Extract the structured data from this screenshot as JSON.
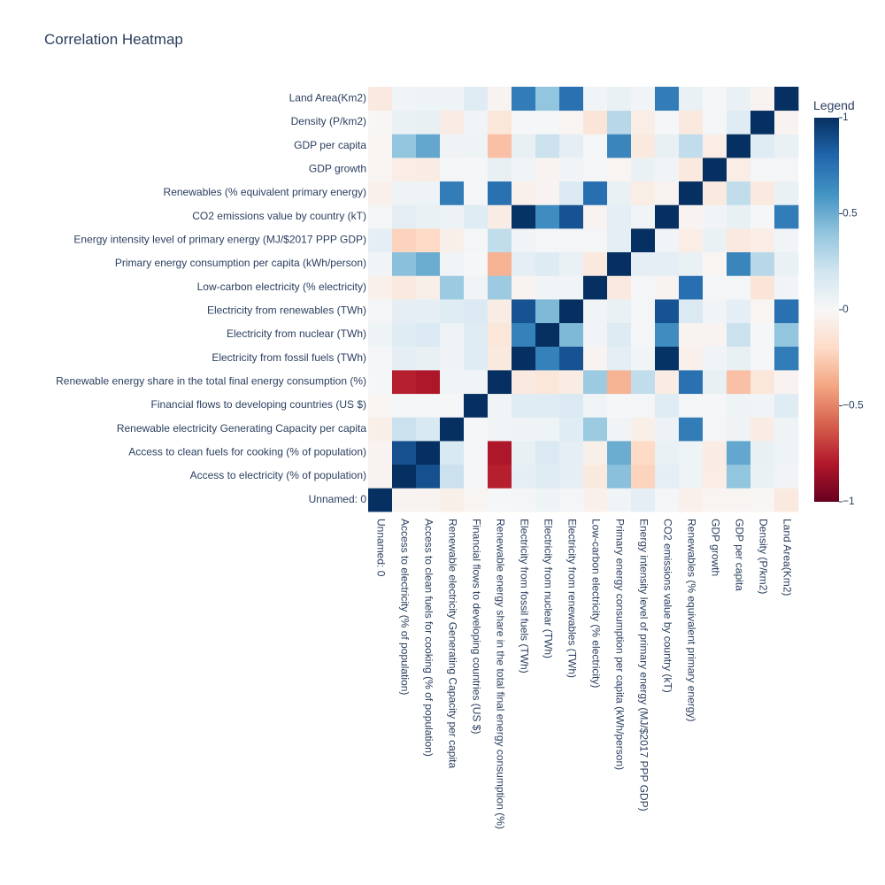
{
  "chart_data": {
    "type": "heatmap",
    "title": "Correlation Heatmap",
    "legend": {
      "title": "Legend",
      "range": [
        -1,
        1
      ],
      "ticks": [
        1,
        0.5,
        0,
        -0.5,
        -1
      ],
      "tick_labels": [
        "1",
        "0.5",
        "0",
        "−0.5",
        "−1"
      ],
      "colorscale": [
        "#67001f",
        "#b2182b",
        "#d6604d",
        "#f4a582",
        "#fddbc7",
        "#f7f7f7",
        "#d1e5f0",
        "#92c5de",
        "#4393c3",
        "#2166ac",
        "#053061"
      ]
    },
    "x_labels": [
      "Unnamed: 0",
      "Access to electricity (% of population)",
      "Access to clean fuels for cooking (% of population)",
      "Renewable electricity Generating Capacity per capita",
      "Financial flows to developing countries (US $)",
      "Renewable energy share in the total final energy consumption (%)",
      "Electricity from fossil fuels (TWh)",
      "Electricity from nuclear (TWh)",
      "Electricity from renewables (TWh)",
      "Low-carbon electricity (% electricity)",
      "Primary energy consumption per capita (kWh/person)",
      "Energy intensity level of primary energy (MJ/$2017 PPP GDP)",
      "CO2 emissions value by country (kT)",
      "Renewables (% equivalent primary energy)",
      "GDP growth",
      "GDP per capita",
      "Density (P/km2)",
      "Land Area(Km2)"
    ],
    "y_labels": [
      "Unnamed: 0",
      "Access to electricity (% of population)",
      "Access to clean fuels for cooking (% of population)",
      "Renewable electricity Generating Capacity per capita",
      "Financial flows to developing countries (US $)",
      "Renewable energy share in the total final energy consumption (%)",
      "Electricity from fossil fuels (TWh)",
      "Electricity from nuclear (TWh)",
      "Electricity from renewables (TWh)",
      "Low-carbon electricity (% electricity)",
      "Primary energy consumption per capita (kWh/person)",
      "Energy intensity level of primary energy (MJ/$2017 PPP GDP)",
      "CO2 emissions value by country (kT)",
      "Renewables (% equivalent primary energy)",
      "GDP growth",
      "GDP per capita",
      "Density (P/km2)",
      "Land Area(Km2)"
    ],
    "z": [
      [
        1.0,
        -0.03,
        -0.03,
        -0.06,
        -0.02,
        0.01,
        0.02,
        0.05,
        0.02,
        -0.05,
        0.03,
        0.1,
        0.02,
        -0.05,
        -0.02,
        -0.02,
        -0.01,
        -0.1
      ],
      [
        -0.03,
        1.0,
        0.88,
        0.22,
        0.02,
        -0.78,
        0.1,
        0.12,
        0.1,
        -0.1,
        0.42,
        -0.23,
        0.1,
        0.05,
        -0.07,
        0.4,
        0.07,
        0.03
      ],
      [
        -0.03,
        0.88,
        1.0,
        0.16,
        0.02,
        -0.81,
        0.08,
        0.15,
        0.1,
        -0.06,
        0.5,
        -0.2,
        0.07,
        0.05,
        -0.08,
        0.52,
        0.08,
        0.05
      ],
      [
        -0.06,
        0.22,
        0.16,
        1.0,
        0.01,
        0.03,
        0.04,
        0.05,
        0.12,
        0.37,
        0.03,
        -0.06,
        0.06,
        0.7,
        0.02,
        0.04,
        -0.08,
        0.05
      ],
      [
        -0.02,
        0.02,
        0.02,
        0.01,
        1.0,
        0.03,
        0.12,
        0.12,
        0.15,
        0.03,
        0.01,
        0.02,
        0.12,
        0.02,
        0.01,
        0.05,
        0.03,
        0.12
      ],
      [
        0.01,
        -0.78,
        -0.81,
        0.03,
        0.03,
        1.0,
        -0.1,
        -0.12,
        -0.08,
        0.37,
        -0.35,
        0.25,
        -0.08,
        0.75,
        0.08,
        -0.3,
        -0.12,
        -0.03
      ],
      [
        0.02,
        0.1,
        0.08,
        0.04,
        0.12,
        -0.1,
        1.0,
        0.68,
        0.87,
        -0.03,
        0.1,
        0.03,
        0.99,
        -0.05,
        0.03,
        0.08,
        0.01,
        0.7
      ],
      [
        0.05,
        0.12,
        0.15,
        0.05,
        0.12,
        -0.12,
        0.68,
        1.0,
        0.45,
        0.03,
        0.13,
        0.02,
        0.63,
        -0.03,
        -0.03,
        0.22,
        0.01,
        0.4
      ],
      [
        0.02,
        0.1,
        0.1,
        0.12,
        0.15,
        -0.08,
        0.87,
        0.45,
        1.0,
        0.03,
        0.07,
        0.02,
        0.87,
        0.15,
        0.03,
        0.1,
        -0.02,
        0.75
      ],
      [
        -0.05,
        -0.1,
        -0.06,
        0.37,
        0.03,
        0.37,
        -0.03,
        0.03,
        0.03,
        1.0,
        -0.1,
        0.02,
        -0.03,
        0.76,
        0.02,
        0.02,
        -0.13,
        0.03
      ],
      [
        0.03,
        0.42,
        0.5,
        0.03,
        0.01,
        -0.35,
        0.1,
        0.13,
        0.07,
        -0.1,
        1.0,
        0.1,
        0.1,
        0.07,
        -0.02,
        0.66,
        0.28,
        0.07
      ],
      [
        0.1,
        -0.23,
        -0.2,
        -0.06,
        0.02,
        0.25,
        0.03,
        0.02,
        0.02,
        0.02,
        0.1,
        1.0,
        0.03,
        -0.07,
        0.07,
        -0.1,
        -0.07,
        0.03
      ],
      [
        0.02,
        0.1,
        0.07,
        0.06,
        0.12,
        -0.08,
        0.99,
        0.63,
        0.87,
        -0.03,
        0.1,
        0.03,
        1.0,
        -0.03,
        0.03,
        0.08,
        0.01,
        0.7
      ],
      [
        -0.05,
        0.05,
        0.05,
        0.7,
        0.02,
        0.75,
        -0.05,
        -0.03,
        0.15,
        0.76,
        0.07,
        -0.07,
        -0.03,
        1.0,
        -0.1,
        0.25,
        -0.1,
        0.07
      ],
      [
        -0.02,
        -0.07,
        -0.08,
        0.02,
        0.01,
        0.08,
        0.03,
        -0.03,
        0.03,
        0.02,
        -0.02,
        0.07,
        0.03,
        -0.1,
        1.0,
        -0.07,
        0.02,
        0.02
      ],
      [
        -0.02,
        0.4,
        0.52,
        0.04,
        0.05,
        -0.3,
        0.08,
        0.22,
        0.1,
        0.02,
        0.66,
        -0.1,
        0.08,
        0.25,
        -0.07,
        1.0,
        0.12,
        0.07
      ],
      [
        -0.01,
        0.07,
        0.08,
        -0.08,
        0.03,
        -0.12,
        0.01,
        0.01,
        -0.02,
        -0.13,
        0.28,
        -0.07,
        0.01,
        -0.1,
        0.02,
        0.12,
        1.0,
        -0.03
      ],
      [
        -0.1,
        0.03,
        0.05,
        0.05,
        0.12,
        -0.03,
        0.7,
        0.4,
        0.75,
        0.03,
        0.07,
        0.03,
        0.7,
        0.07,
        0.02,
        0.07,
        -0.03,
        1.0
      ]
    ]
  }
}
